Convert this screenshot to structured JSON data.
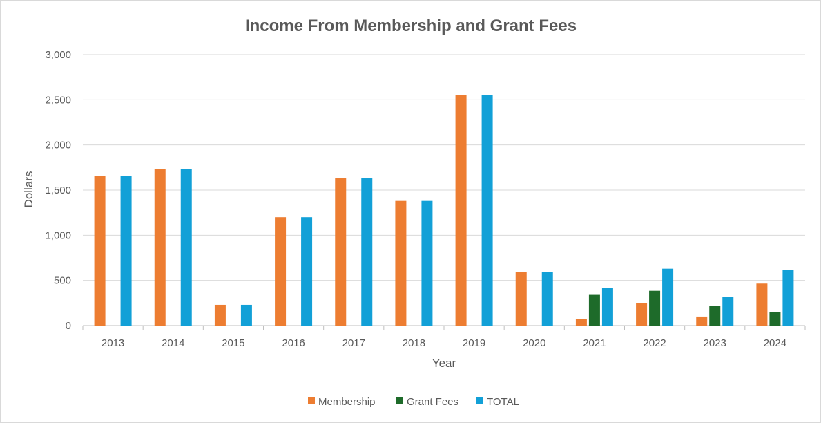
{
  "chart_data": {
    "type": "bar",
    "title": "Income From Membership and Grant Fees",
    "xlabel": "Year",
    "ylabel": "Dollars",
    "ylim": [
      0,
      3000
    ],
    "yticks": [
      "0",
      "500",
      "1,000",
      "1,500",
      "2,000",
      "2,500",
      "3,000"
    ],
    "ytick_values": [
      0,
      500,
      1000,
      1500,
      2000,
      2500,
      3000
    ],
    "grid": true,
    "legend_position": "bottom",
    "categories": [
      "2013",
      "2014",
      "2015",
      "2016",
      "2017",
      "2018",
      "2019",
      "2020",
      "2021",
      "2022",
      "2023",
      "2024"
    ],
    "series": [
      {
        "name": "Membership",
        "color": "#ED7D31",
        "values": [
          1660,
          1730,
          230,
          1200,
          1630,
          1380,
          2550,
          595,
          75,
          245,
          100,
          465
        ]
      },
      {
        "name": "Grant Fees",
        "color": "#1E6B2A",
        "values": [
          0,
          0,
          0,
          0,
          0,
          0,
          0,
          0,
          340,
          385,
          220,
          150
        ]
      },
      {
        "name": "TOTAL",
        "color": "#12A0D7",
        "values": [
          1660,
          1730,
          230,
          1200,
          1630,
          1380,
          2550,
          595,
          415,
          630,
          320,
          615
        ]
      }
    ]
  }
}
